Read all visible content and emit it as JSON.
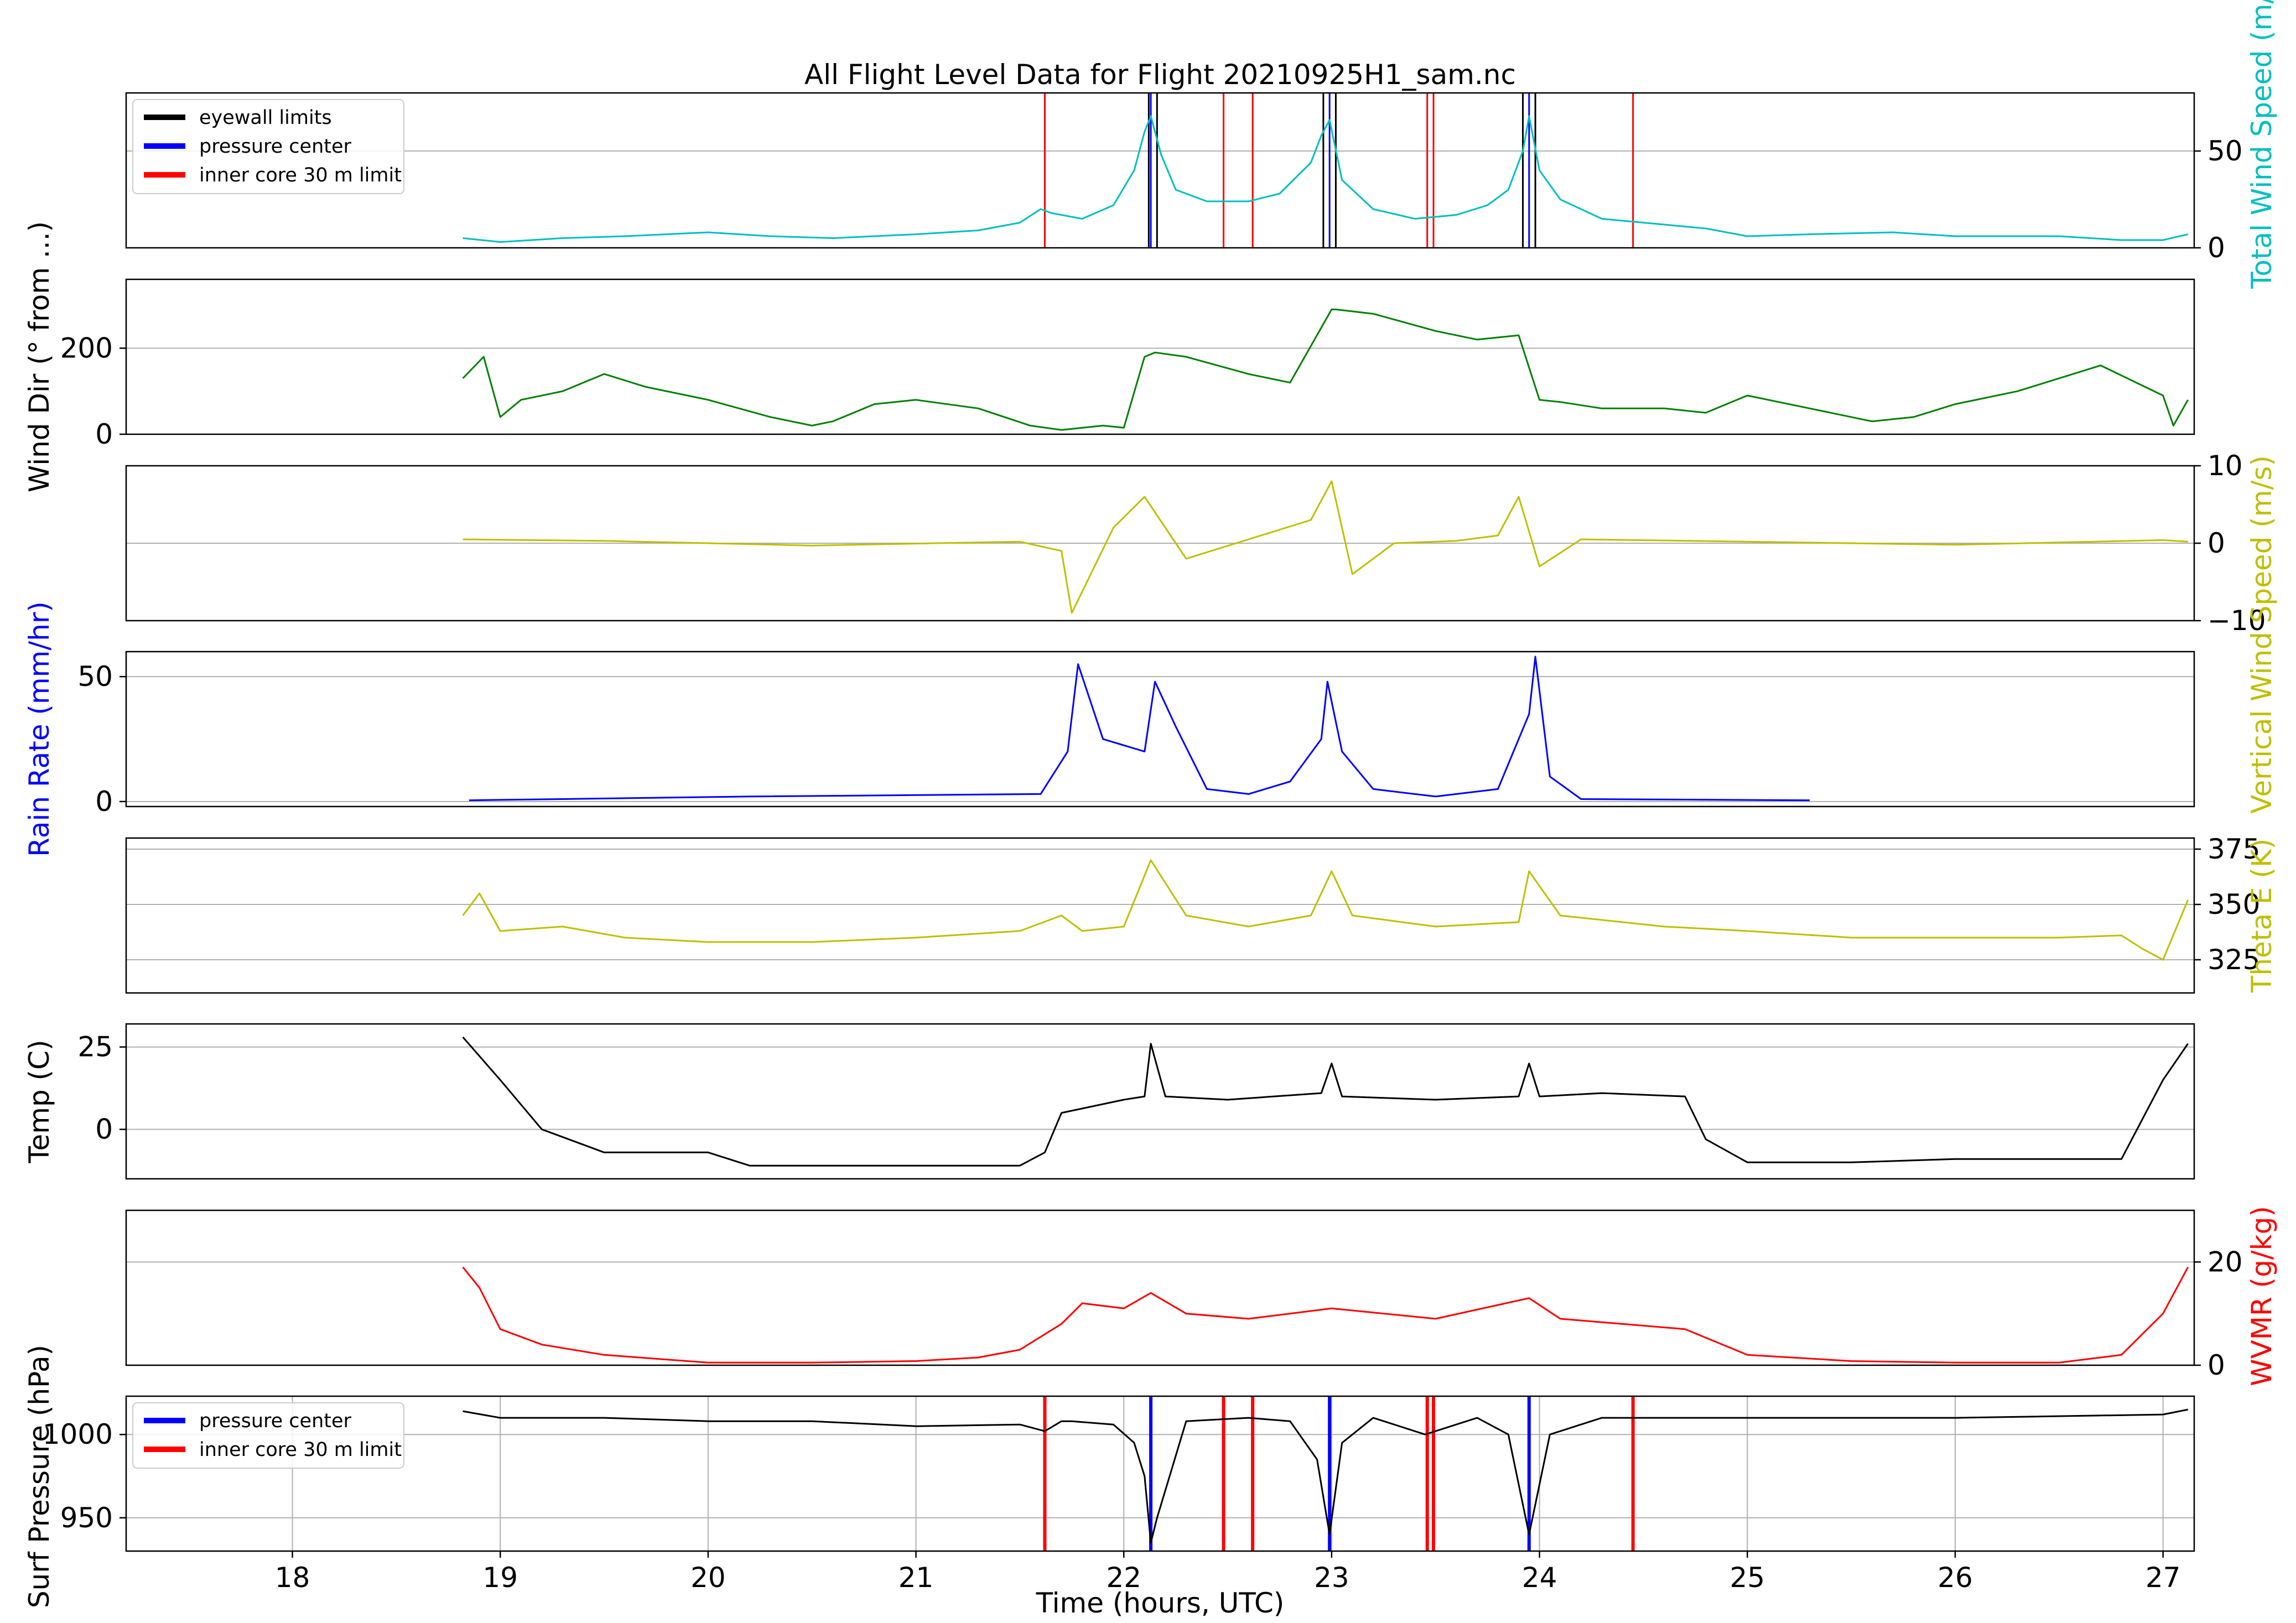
{
  "chart_data": {
    "type": "line",
    "title": "All Flight Level Data for Flight 20210925H1_sam.nc",
    "xlabel": "Time (hours, UTC)",
    "xlim": [
      17.2,
      27.15
    ],
    "xticks": [
      18,
      19,
      20,
      21,
      22,
      23,
      24,
      25,
      26,
      27
    ],
    "x_grid_bottom_panel_only": true,
    "eyewall_limits_hours": [
      22.12,
      22.16,
      22.96,
      23.02,
      23.92,
      23.98
    ],
    "pressure_center_hours": [
      22.13,
      22.99,
      23.95
    ],
    "inner_core_limit_hours": [
      21.62,
      22.48,
      22.62,
      23.46,
      23.49,
      24.45
    ],
    "legend_top": {
      "placement": "upper-left",
      "entries": [
        {
          "label": "eyewall limits",
          "color": "#000000"
        },
        {
          "label": "pressure center",
          "color": "#0000ff"
        },
        {
          "label": "inner core 30 m limit",
          "color": "#ff0000"
        }
      ]
    },
    "legend_bottom": {
      "placement": "upper-left",
      "entries": [
        {
          "label": "pressure center",
          "color": "#0000ff"
        },
        {
          "label": "inner core 30 m limit",
          "color": "#ff0000"
        }
      ]
    },
    "panels": [
      {
        "id": "wind-speed",
        "axis_side": "right",
        "ylabel_parts": [
          {
            "text": "Total ",
            "color": "#00bfbf"
          },
          {
            "text": "Wind Speed",
            "color": "#00bfbf"
          },
          {
            "text": " (m/s)",
            "color": "#00bfbf"
          }
        ],
        "color": "#00bfbf",
        "ylim": [
          0,
          80
        ],
        "yticks": [
          0,
          50
        ],
        "grid": [
          50
        ],
        "markers": true,
        "series": {
          "name": "Total Wind Speed",
          "x": [
            18.82,
            19.0,
            19.3,
            19.6,
            20.0,
            20.3,
            20.6,
            21.0,
            21.3,
            21.5,
            21.6,
            21.65,
            21.8,
            21.95,
            22.05,
            22.1,
            22.13,
            22.18,
            22.25,
            22.4,
            22.6,
            22.75,
            22.9,
            22.95,
            22.99,
            23.05,
            23.2,
            23.4,
            23.6,
            23.75,
            23.85,
            23.92,
            23.95,
            24.0,
            24.1,
            24.3,
            24.6,
            24.8,
            25.0,
            25.3,
            25.7,
            26.0,
            26.5,
            26.8,
            27.0,
            27.12
          ],
          "y": [
            5,
            3,
            5,
            6,
            8,
            6,
            5,
            7,
            9,
            13,
            20,
            18,
            15,
            22,
            40,
            60,
            68,
            48,
            30,
            24,
            24,
            28,
            44,
            58,
            66,
            35,
            20,
            15,
            17,
            22,
            30,
            50,
            68,
            40,
            25,
            15,
            12,
            10,
            6,
            7,
            8,
            6,
            6,
            4,
            4,
            7
          ]
        }
      },
      {
        "id": "wind-dir",
        "axis_side": "left",
        "ylabel_parts": [
          {
            "text": "Wind Dir (° from ...)",
            "color": "#000000"
          }
        ],
        "color": "#008000",
        "ylim": [
          0,
          360
        ],
        "yticks": [
          0,
          200
        ],
        "grid": [
          0,
          200
        ],
        "series": {
          "name": "Wind Dir",
          "x": [
            18.82,
            18.92,
            19.0,
            19.1,
            19.3,
            19.5,
            19.7,
            20.0,
            20.3,
            20.5,
            20.6,
            20.8,
            21.0,
            21.3,
            21.55,
            21.7,
            21.9,
            22.0,
            22.1,
            22.15,
            22.3,
            22.6,
            22.8,
            23.0,
            23.02,
            23.2,
            23.5,
            23.7,
            23.9,
            24.0,
            24.1,
            24.3,
            24.6,
            24.8,
            25.0,
            25.3,
            25.6,
            25.8,
            26.0,
            26.3,
            26.7,
            27.0,
            27.05,
            27.12
          ],
          "y": [
            130,
            180,
            40,
            80,
            100,
            140,
            110,
            80,
            40,
            20,
            30,
            70,
            80,
            60,
            20,
            10,
            20,
            15,
            180,
            190,
            180,
            140,
            120,
            290,
            290,
            280,
            240,
            220,
            230,
            80,
            75,
            60,
            60,
            50,
            90,
            60,
            30,
            40,
            70,
            100,
            160,
            90,
            20,
            80
          ]
        }
      },
      {
        "id": "vertical-wind",
        "axis_side": "right",
        "ylabel_parts": [
          {
            "text": "Vertical Wind Speed (m/s)",
            "color": "#bfbf00"
          }
        ],
        "color": "#bfbf00",
        "ylim": [
          -10,
          10
        ],
        "yticks": [
          -10,
          0,
          10
        ],
        "grid": [
          0
        ],
        "series": {
          "name": "Vertical Wind Speed",
          "x": [
            18.82,
            19.5,
            20.5,
            21.5,
            21.7,
            21.75,
            21.95,
            22.1,
            22.3,
            22.6,
            22.9,
            23.0,
            23.1,
            23.3,
            23.6,
            23.8,
            23.9,
            24.0,
            24.2,
            25.0,
            26.0,
            27.0,
            27.12
          ],
          "y": [
            0.5,
            0.3,
            -0.3,
            0.2,
            -1,
            -9,
            2,
            6,
            -2,
            0.5,
            3,
            8,
            -4,
            0,
            0.3,
            1,
            6,
            -3,
            0.5,
            0.2,
            -0.2,
            0.4,
            0.2
          ]
        }
      },
      {
        "id": "rain-rate",
        "axis_side": "left",
        "ylabel_parts": [
          {
            "text": "Rain Rate (mm/hr)",
            "color": "#0000ff"
          }
        ],
        "color": "#0000ff",
        "ylim": [
          -2,
          60
        ],
        "yticks": [
          0,
          50
        ],
        "grid": [
          0,
          50
        ],
        "series": {
          "name": "Rain Rate",
          "x": [
            18.85,
            19.3,
            20.2,
            21.6,
            21.73,
            21.78,
            21.9,
            22.1,
            22.15,
            22.25,
            22.4,
            22.6,
            22.8,
            22.95,
            22.98,
            23.05,
            23.2,
            23.5,
            23.8,
            23.9,
            23.95,
            23.98,
            24.05,
            24.2,
            25.3
          ],
          "y": [
            0.5,
            1,
            2,
            3,
            20,
            55,
            25,
            20,
            48,
            30,
            5,
            3,
            8,
            25,
            48,
            20,
            5,
            2,
            5,
            25,
            35,
            58,
            10,
            1,
            0.5
          ]
        }
      },
      {
        "id": "theta-e",
        "axis_side": "right",
        "ylabel_parts": [
          {
            "text": "Theta E (K)",
            "color": "#bfbf00"
          }
        ],
        "color": "#bfbf00",
        "ylim": [
          310,
          380
        ],
        "yticks": [
          325,
          350,
          375
        ],
        "grid": [
          325,
          350,
          375
        ],
        "series": {
          "name": "Theta E",
          "x": [
            18.82,
            18.9,
            19.0,
            19.3,
            19.6,
            20.0,
            20.5,
            21.0,
            21.5,
            21.7,
            21.8,
            22.0,
            22.13,
            22.3,
            22.6,
            22.9,
            23.0,
            23.1,
            23.5,
            23.9,
            23.95,
            24.1,
            24.6,
            25.0,
            25.5,
            26.0,
            26.5,
            26.8,
            26.9,
            27.0,
            27.12
          ]
        }
      },
      {
        "id": "temp",
        "axis_side": "left",
        "ylabel_parts": [
          {
            "text": "Temp (C)",
            "color": "#000000"
          }
        ],
        "color": "#000000",
        "ylim": [
          -15,
          32
        ],
        "yticks": [
          0,
          25
        ],
        "grid": [
          0,
          25
        ],
        "series": {
          "name": "Temp",
          "x": [
            18.82,
            19.0,
            19.2,
            19.5,
            20.0,
            20.2,
            20.4,
            21.0,
            21.5,
            21.62,
            21.7,
            22.0,
            22.1,
            22.13,
            22.2,
            22.5,
            22.95,
            23.0,
            23.05,
            23.5,
            23.9,
            23.95,
            24.0,
            24.3,
            24.7,
            24.8,
            25.0,
            25.5,
            26.0,
            26.5,
            26.8,
            27.0,
            27.12
          ],
          "y": [
            28,
            15,
            0,
            -7,
            -7,
            -11,
            -11,
            -11,
            -11,
            -7,
            5,
            9,
            10,
            26,
            10,
            9,
            11,
            20,
            10,
            9,
            10,
            20,
            10,
            11,
            10,
            -3,
            -10,
            -10,
            -9,
            -9,
            -9,
            15,
            26
          ]
        }
      },
      {
        "id": "wvmr",
        "axis_side": "right",
        "ylabel_parts": [
          {
            "text": "WVMR (g/kg)",
            "color": "#ff0000"
          }
        ],
        "color": "#ff0000",
        "ylim": [
          0,
          30
        ],
        "yticks": [
          0,
          20
        ],
        "grid": [
          20
        ],
        "series": {
          "name": "WVMR",
          "x": [
            18.82,
            18.9,
            19.0,
            19.2,
            19.5,
            20.0,
            20.5,
            21.0,
            21.3,
            21.5,
            21.7,
            21.8,
            22.0,
            22.13,
            22.3,
            22.6,
            23.0,
            23.5,
            23.95,
            24.1,
            24.7,
            25.0,
            25.5,
            26.0,
            26.5,
            26.8,
            27.0,
            27.12
          ],
          "y": [
            19,
            15,
            7,
            4,
            2,
            0.5,
            0.5,
            0.8,
            1.5,
            3,
            8,
            12,
            11,
            14,
            10,
            9,
            11,
            9,
            13,
            9,
            7,
            2,
            0.8,
            0.5,
            0.5,
            2,
            10,
            19
          ]
        }
      },
      {
        "id": "surf-pressure",
        "axis_side": "left",
        "ylabel_parts": [
          {
            "text": "Surf Pressure (hPa)",
            "color": "#000000"
          }
        ],
        "color": "#000000",
        "ylim": [
          930,
          1023
        ],
        "yticks": [
          950,
          1000
        ],
        "grid": [
          950,
          1000
        ],
        "markers": true,
        "bottom": true,
        "series": {
          "name": "Surf Pressure",
          "x": [
            18.82,
            19.0,
            19.5,
            20.0,
            20.5,
            21.0,
            21.5,
            21.62,
            21.7,
            21.75,
            21.95,
            22.05,
            22.1,
            22.13,
            22.16,
            22.3,
            22.6,
            22.8,
            22.93,
            22.99,
            23.05,
            23.2,
            23.45,
            23.7,
            23.85,
            23.95,
            24.05,
            24.3,
            25.0,
            26.0,
            27.0,
            27.12
          ],
          "y": [
            1014,
            1010,
            1010,
            1008,
            1008,
            1005,
            1006,
            1002,
            1008,
            1008,
            1006,
            995,
            975,
            935,
            950,
            1008,
            1010,
            1008,
            985,
            940,
            995,
            1010,
            1000,
            1010,
            1000,
            940,
            1000,
            1010,
            1010,
            1010,
            1012,
            1015
          ]
        }
      }
    ]
  }
}
